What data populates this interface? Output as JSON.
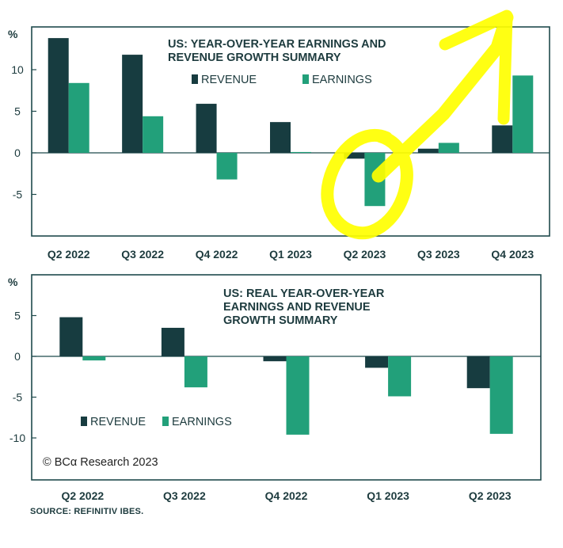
{
  "colors": {
    "revenue": "#173c40",
    "earnings": "#22a07a",
    "frame": "#1f4a4c",
    "highlighter": "#ffff00",
    "text": "#1d3b3e"
  },
  "chart_data": [
    {
      "type": "bar",
      "title_lines": [
        "US: YEAR-OVER-YEAR EARNINGS AND",
        "REVENUE GROWTH SUMMARY"
      ],
      "unit_label": "%",
      "categories": [
        "Q2 2022",
        "Q3 2022",
        "Q4 2022",
        "Q1 2023",
        "Q2 2023",
        "Q3 2023",
        "Q4 2023"
      ],
      "series": [
        {
          "name": "REVENUE",
          "values": [
            13.8,
            11.8,
            5.9,
            3.7,
            -0.7,
            0.5,
            3.3
          ]
        },
        {
          "name": "EARNINGS",
          "values": [
            8.4,
            4.4,
            -3.2,
            0.1,
            -6.4,
            1.2,
            9.3
          ]
        }
      ],
      "ylim": [
        -10,
        15
      ],
      "yticks": [
        10,
        5,
        0,
        -5
      ],
      "legend": "top"
    },
    {
      "type": "bar",
      "title_lines": [
        "US: REAL YEAR-OVER-YEAR",
        "EARNINGS AND REVENUE",
        "GROWTH SUMMARY"
      ],
      "unit_label": "%",
      "categories": [
        "Q2 2022",
        "Q3 2022",
        "Q4 2022",
        "Q1 2023",
        "Q2 2023"
      ],
      "series": [
        {
          "name": "REVENUE",
          "values": [
            4.8,
            3.5,
            -0.6,
            -1.4,
            -3.9
          ]
        },
        {
          "name": "EARNINGS",
          "values": [
            -0.5,
            -3.8,
            -9.6,
            -4.9,
            -9.5
          ]
        }
      ],
      "ylim": [
        -15,
        8
      ],
      "yticks": [
        5,
        0,
        -5,
        -10
      ],
      "legend": "bottom-left"
    }
  ],
  "watermark": "© BCα Research 2023",
  "source": "SOURCE: REFINITIV IBES."
}
